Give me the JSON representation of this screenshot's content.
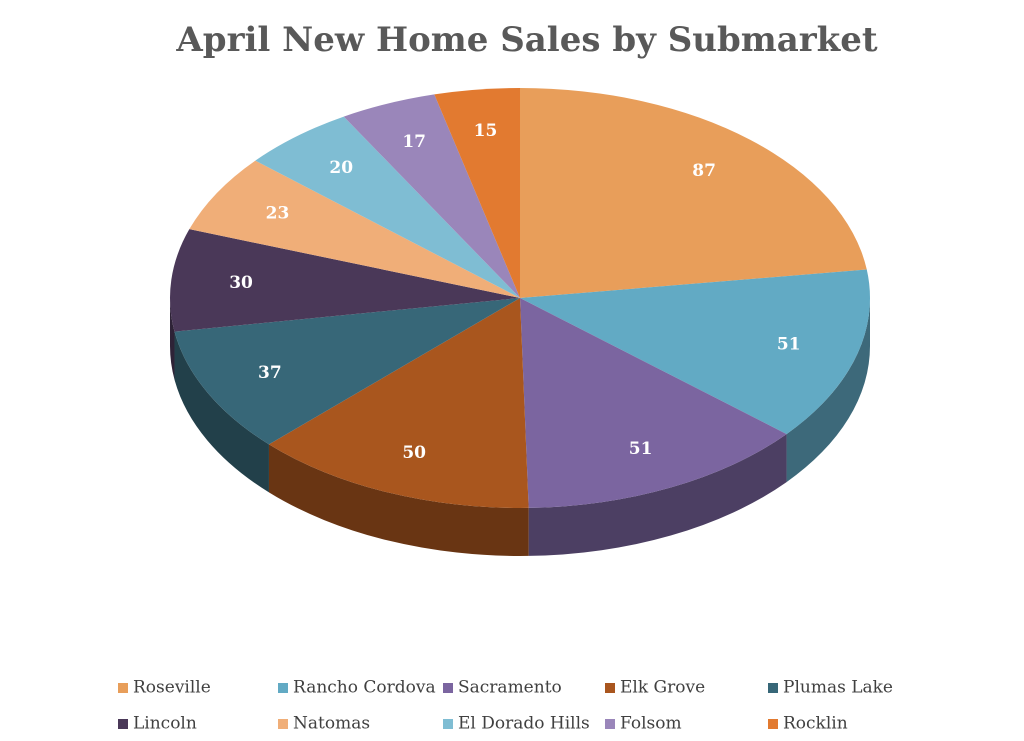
{
  "chart_data": {
    "type": "pie",
    "title": "April New Home Sales by Submarket",
    "categories": [
      "Roseville",
      "Rancho Cordova",
      "Sacramento",
      "Elk Grove",
      "Plumas Lake",
      "Lincoln",
      "Natomas",
      "El Dorado Hills",
      "Folsom",
      "Rocklin"
    ],
    "values": [
      87,
      51,
      51,
      50,
      37,
      30,
      23,
      20,
      17,
      15
    ],
    "colors": [
      "#E89E5A",
      "#62AAC4",
      "#7B65A0",
      "#A9561E",
      "#376778",
      "#4A3858",
      "#F0AE78",
      "#7FBDD3",
      "#9A86BA",
      "#E27A30"
    ],
    "legend": "bottom"
  }
}
